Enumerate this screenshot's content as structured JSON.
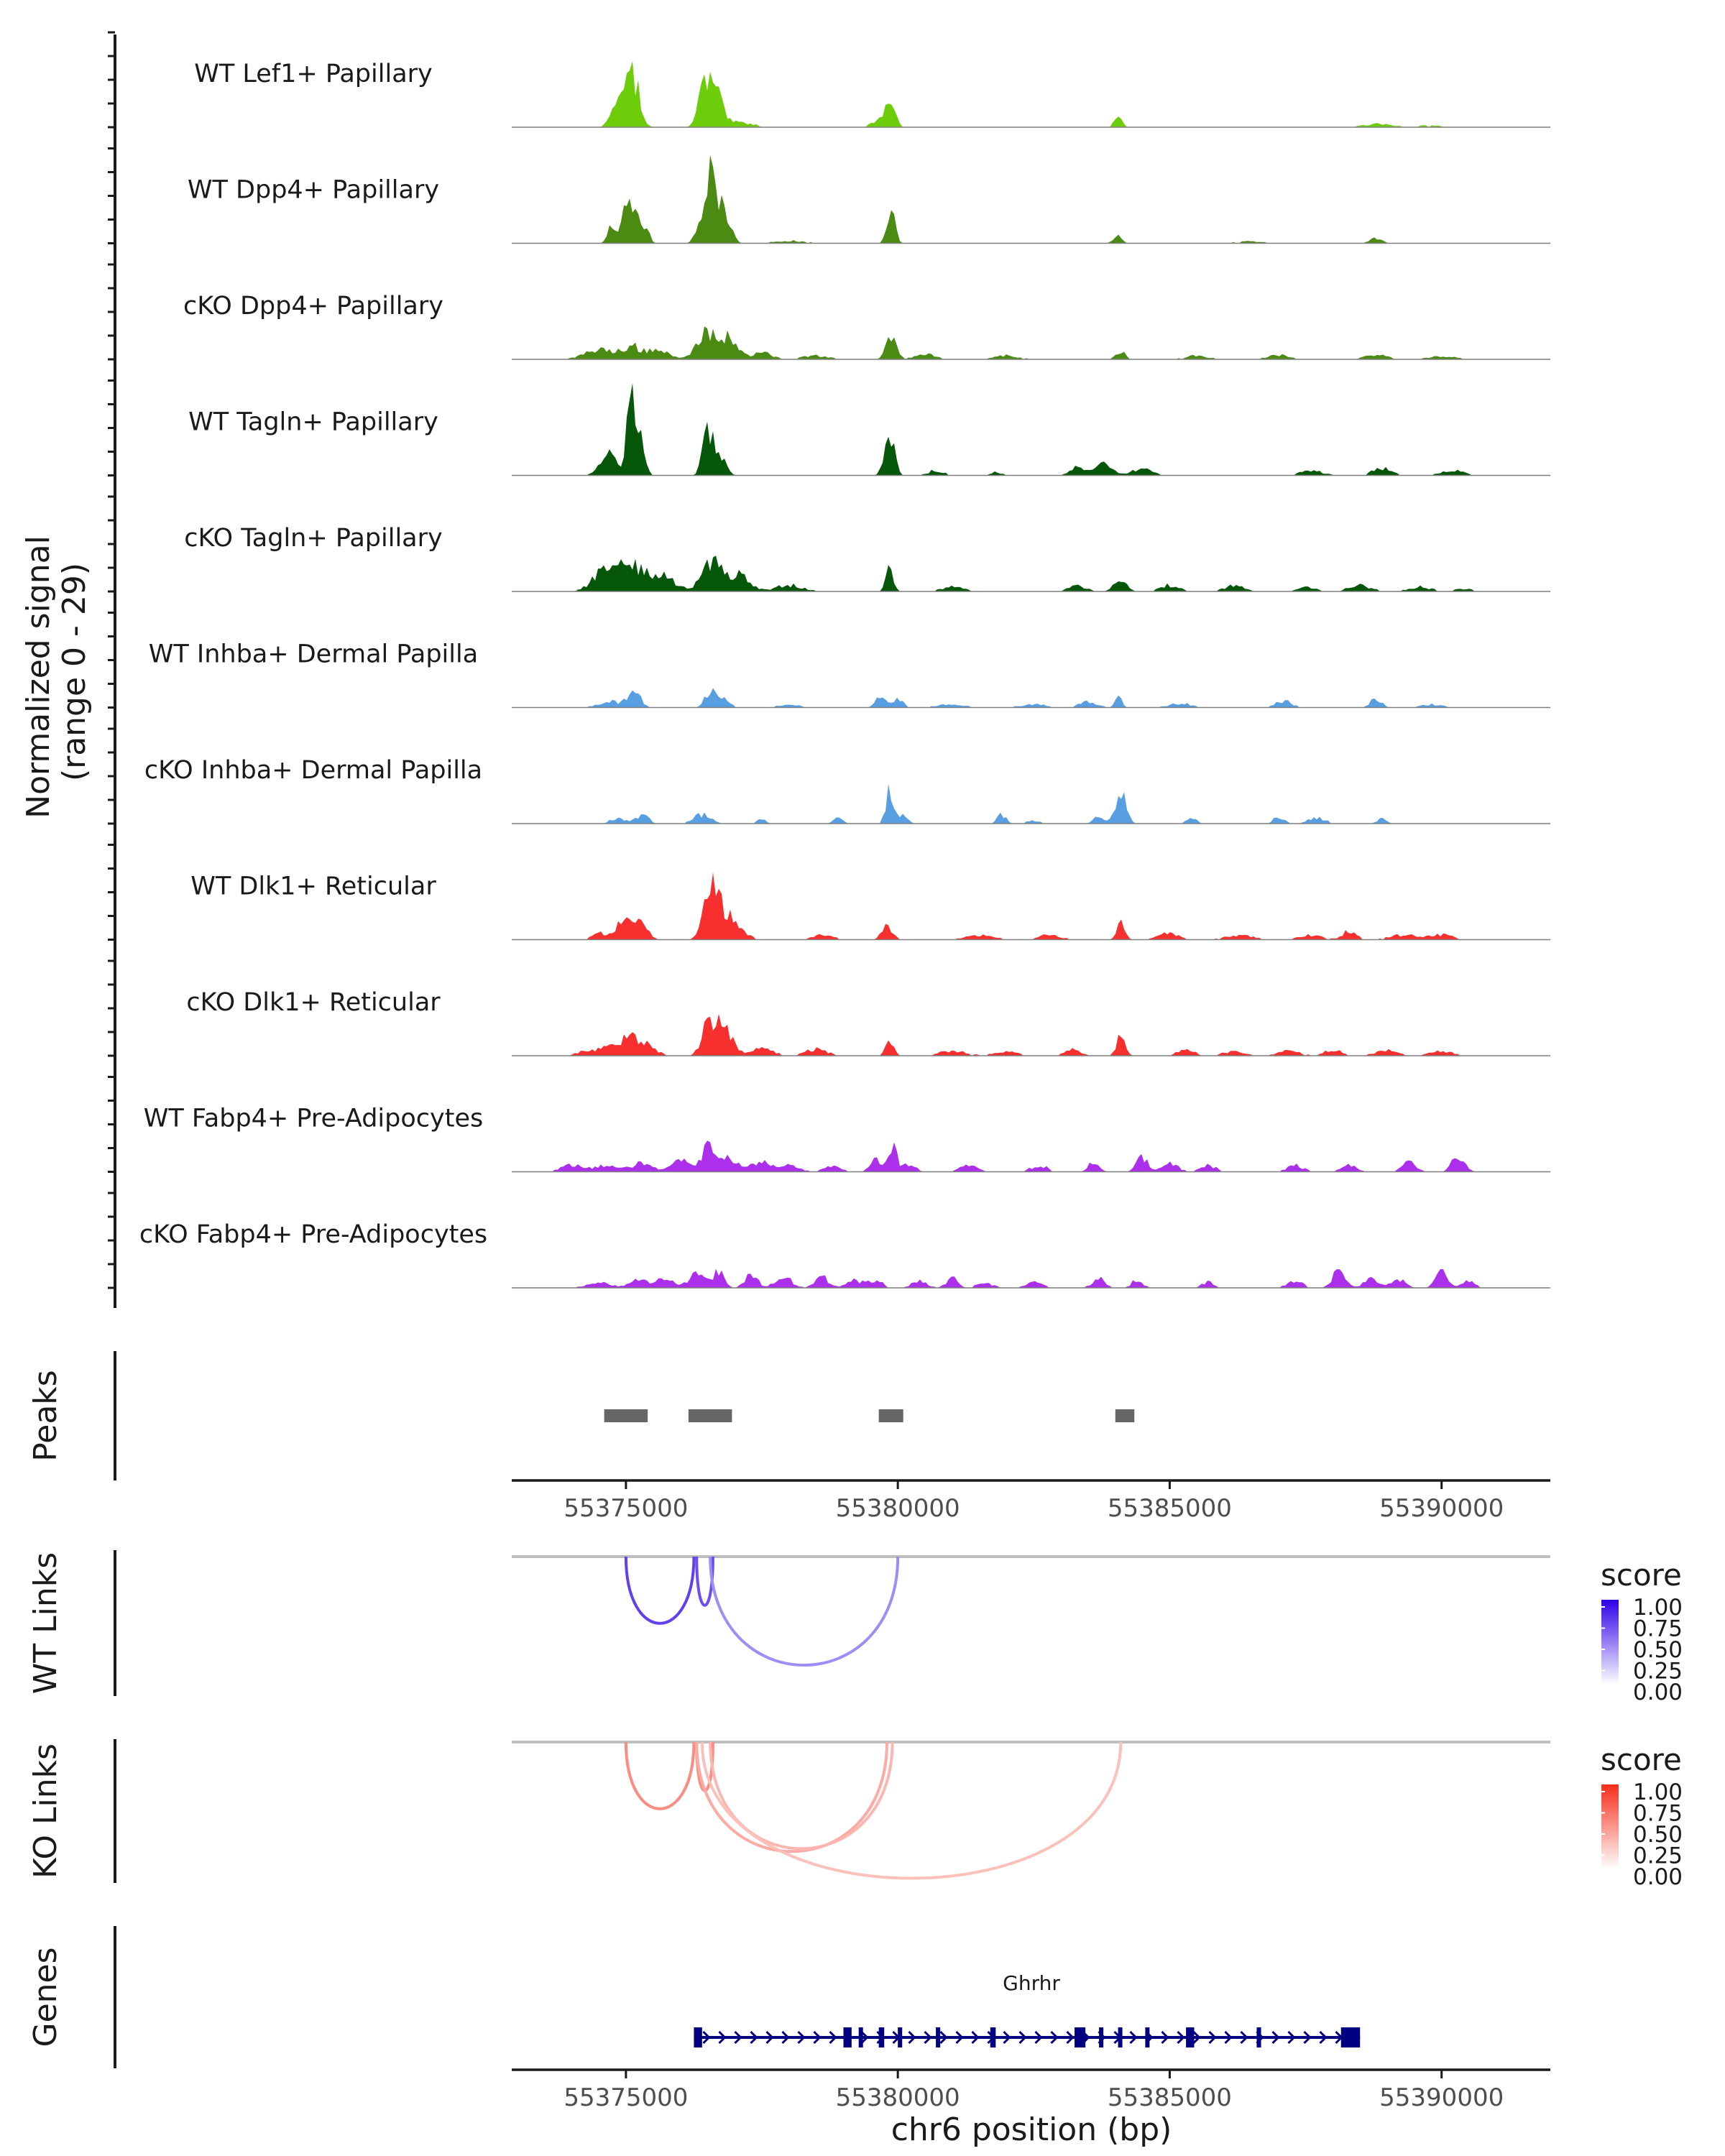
{
  "figure": {
    "y_axis_title_line1": "Normalized signal",
    "y_axis_title_line2": "(range 0 - 29)",
    "x_axis_title": "chr6 position (bp)"
  },
  "chart_data": {
    "type": "genome-browser-coverage",
    "chromosome": "chr6",
    "xlim": [
      55372900,
      55392000
    ],
    "x_ticks": [
      55375000,
      55380000,
      55385000,
      55390000
    ],
    "x_tick_labels": [
      "55375000",
      "55380000",
      "55385000",
      "55390000"
    ],
    "signal_range": [
      0,
      29
    ],
    "tracks": [
      {
        "name": "WT Lef1+ Papillary",
        "color": "#6dcd0b",
        "peaks": [
          [
            55374710,
            3,
            55
          ],
          [
            55375000,
            11,
            160
          ],
          [
            55375160,
            9,
            110
          ],
          [
            55376480,
            9,
            140
          ],
          [
            55376650,
            8,
            130
          ],
          [
            55376400,
            4,
            60
          ],
          [
            55377100,
            1.5,
            250
          ],
          [
            55379850,
            8,
            90
          ],
          [
            55379700,
            2.5,
            150
          ],
          [
            55384050,
            3,
            70
          ],
          [
            55388800,
            1,
            250
          ],
          [
            55389700,
            0.5,
            300
          ]
        ]
      },
      {
        "name": "WT Dpp4+ Papillary",
        "color": "#4b8a13",
        "peaks": [
          [
            55374700,
            4,
            60
          ],
          [
            55375050,
            13,
            130
          ],
          [
            55375300,
            6,
            100
          ],
          [
            55376570,
            20,
            90
          ],
          [
            55376780,
            12,
            120
          ],
          [
            55376350,
            6,
            80
          ],
          [
            55379870,
            13,
            70
          ],
          [
            55384050,
            2.2,
            80
          ],
          [
            55388800,
            1.5,
            120
          ],
          [
            55378000,
            0.8,
            300
          ],
          [
            55386500,
            0.6,
            300
          ]
        ]
      },
      {
        "name": "cKO Dpp4+ Papillary",
        "color": "#4b8a13",
        "peaks": [
          [
            55374500,
            3,
            250
          ],
          [
            55375100,
            4,
            200
          ],
          [
            55375600,
            3,
            180
          ],
          [
            55376500,
            9,
            180
          ],
          [
            55376900,
            6,
            160
          ],
          [
            55377500,
            2,
            200
          ],
          [
            55378500,
            1.2,
            250
          ],
          [
            55379880,
            7,
            90
          ],
          [
            55380500,
            1.5,
            200
          ],
          [
            55382000,
            1.2,
            220
          ],
          [
            55384100,
            3,
            80
          ],
          [
            55385500,
            1.2,
            200
          ],
          [
            55387000,
            1.5,
            200
          ],
          [
            55388800,
            1.5,
            200
          ],
          [
            55390000,
            1,
            250
          ]
        ]
      },
      {
        "name": "WT Tagln+ Papillary",
        "color": "#065709",
        "peaks": [
          [
            55374700,
            8,
            150
          ],
          [
            55375080,
            22,
            70
          ],
          [
            55375250,
            11,
            90
          ],
          [
            55376500,
            13,
            90
          ],
          [
            55376700,
            8,
            110
          ],
          [
            55379850,
            12,
            90
          ],
          [
            55380700,
            1.5,
            150
          ],
          [
            55383300,
            3,
            130
          ],
          [
            55383800,
            4,
            150
          ],
          [
            55384500,
            2.5,
            160
          ],
          [
            55387600,
            1.5,
            200
          ],
          [
            55388900,
            2.5,
            160
          ],
          [
            55390200,
            1.5,
            200
          ],
          [
            55381800,
            1,
            120
          ]
        ]
      },
      {
        "name": "cKO Tagln+ Papillary",
        "color": "#065709",
        "peaks": [
          [
            55374600,
            6,
            220
          ],
          [
            55375100,
            8,
            250
          ],
          [
            55375700,
            5,
            200
          ],
          [
            55376600,
            9,
            200
          ],
          [
            55377100,
            5,
            180
          ],
          [
            55378000,
            2,
            250
          ],
          [
            55379850,
            10,
            60
          ],
          [
            55381000,
            1.5,
            200
          ],
          [
            55383300,
            2,
            150
          ],
          [
            55384100,
            4,
            120
          ],
          [
            55385000,
            2,
            160
          ],
          [
            55386200,
            2,
            180
          ],
          [
            55387500,
            1.5,
            160
          ],
          [
            55388500,
            2,
            200
          ],
          [
            55389600,
            1.5,
            200
          ],
          [
            55390400,
            1,
            150
          ]
        ]
      },
      {
        "name": "WT Inhba+ Dermal Papilla",
        "color": "#579ee2",
        "peaks": [
          [
            55374700,
            2,
            200
          ],
          [
            55375150,
            5,
            120
          ],
          [
            55376550,
            5,
            100
          ],
          [
            55376800,
            2.5,
            120
          ],
          [
            55378000,
            1,
            200
          ],
          [
            55379700,
            3.5,
            100
          ],
          [
            55380000,
            2.5,
            100
          ],
          [
            55381000,
            1,
            250
          ],
          [
            55382500,
            1,
            250
          ],
          [
            55383500,
            1.8,
            160
          ],
          [
            55384050,
            4,
            60
          ],
          [
            55385200,
            1.3,
            200
          ],
          [
            55387100,
            2,
            150
          ],
          [
            55388800,
            3,
            100
          ],
          [
            55389800,
            1,
            200
          ]
        ]
      },
      {
        "name": "cKO Inhba+ Dermal Papilla",
        "color": "#579ee2",
        "peaks": [
          [
            55374850,
            2,
            120
          ],
          [
            55375300,
            2.5,
            120
          ],
          [
            55376400,
            3,
            150
          ],
          [
            55377500,
            1.5,
            80
          ],
          [
            55378900,
            2,
            80
          ],
          [
            55379850,
            10,
            70
          ],
          [
            55380100,
            3,
            80
          ],
          [
            55381900,
            3,
            80
          ],
          [
            55382500,
            1,
            120
          ],
          [
            55383700,
            3,
            90
          ],
          [
            55384100,
            9,
            100
          ],
          [
            55385400,
            1.5,
            100
          ],
          [
            55387000,
            2,
            100
          ],
          [
            55387700,
            2,
            150
          ],
          [
            55388900,
            1.5,
            80
          ]
        ]
      },
      {
        "name": "WT Dlk1+ Reticular",
        "color": "#f82f2f",
        "peaks": [
          [
            55374500,
            2,
            120
          ],
          [
            55375000,
            7,
            160
          ],
          [
            55375300,
            4,
            120
          ],
          [
            55376550,
            14,
            130
          ],
          [
            55376800,
            8,
            150
          ],
          [
            55377100,
            3,
            150
          ],
          [
            55378600,
            1.5,
            200
          ],
          [
            55379800,
            4,
            100
          ],
          [
            55381500,
            1.5,
            250
          ],
          [
            55382800,
            1.5,
            200
          ],
          [
            55384100,
            5,
            80
          ],
          [
            55385000,
            2,
            200
          ],
          [
            55386300,
            1.5,
            250
          ],
          [
            55387600,
            1.5,
            200
          ],
          [
            55388300,
            3,
            120
          ],
          [
            55389300,
            1.5,
            250
          ],
          [
            55390000,
            1.5,
            200
          ]
        ]
      },
      {
        "name": "cKO Dlk1+ Reticular",
        "color": "#f82f2f",
        "peaks": [
          [
            55374300,
            1.5,
            200
          ],
          [
            55374700,
            3,
            150
          ],
          [
            55375050,
            7,
            130
          ],
          [
            55375400,
            3.5,
            150
          ],
          [
            55376550,
            12,
            130
          ],
          [
            55376850,
            7,
            150
          ],
          [
            55377500,
            2.5,
            200
          ],
          [
            55378500,
            2,
            200
          ],
          [
            55379850,
            5,
            70
          ],
          [
            55381000,
            1.5,
            250
          ],
          [
            55382000,
            1.5,
            200
          ],
          [
            55383200,
            2,
            150
          ],
          [
            55384100,
            6,
            80
          ],
          [
            55385300,
            2,
            150
          ],
          [
            55386200,
            1.5,
            200
          ],
          [
            55387200,
            1.5,
            200
          ],
          [
            55388000,
            2,
            150
          ],
          [
            55389000,
            1.8,
            200
          ],
          [
            55390000,
            1.5,
            200
          ]
        ]
      },
      {
        "name": "WT Fabp4+ Pre-Adipocytes",
        "color": "#ac30eb",
        "peaks": [
          [
            55374000,
            2,
            200
          ],
          [
            55374600,
            2,
            200
          ],
          [
            55375300,
            3,
            200
          ],
          [
            55376000,
            3.5,
            150
          ],
          [
            55376550,
            9,
            140
          ],
          [
            55376900,
            4,
            150
          ],
          [
            55377500,
            3,
            200
          ],
          [
            55378000,
            2,
            180
          ],
          [
            55378800,
            2,
            150
          ],
          [
            55379600,
            4,
            100
          ],
          [
            55379900,
            8,
            80
          ],
          [
            55380200,
            2.5,
            120
          ],
          [
            55381300,
            2,
            150
          ],
          [
            55382600,
            2,
            150
          ],
          [
            55383600,
            3,
            100
          ],
          [
            55384500,
            5,
            100
          ],
          [
            55385000,
            2.5,
            150
          ],
          [
            55385700,
            2,
            150
          ],
          [
            55387300,
            2,
            150
          ],
          [
            55388300,
            2,
            150
          ],
          [
            55389400,
            3,
            120
          ],
          [
            55390300,
            5,
            120
          ]
        ]
      },
      {
        "name": "cKO Fabp4+ Pre-Adipocytes",
        "color": "#ac30eb",
        "peaks": [
          [
            55374500,
            2,
            200
          ],
          [
            55375200,
            2.5,
            150
          ],
          [
            55375700,
            2.5,
            200
          ],
          [
            55376300,
            4,
            150
          ],
          [
            55376700,
            5,
            100
          ],
          [
            55377300,
            4,
            120
          ],
          [
            55377900,
            3.5,
            150
          ],
          [
            55378600,
            3.5,
            120
          ],
          [
            55379200,
            2.5,
            150
          ],
          [
            55379600,
            2.5,
            120
          ],
          [
            55380400,
            2,
            150
          ],
          [
            55381000,
            3.5,
            100
          ],
          [
            55381600,
            1.5,
            150
          ],
          [
            55382500,
            2,
            150
          ],
          [
            55383700,
            3,
            120
          ],
          [
            55384400,
            2.5,
            100
          ],
          [
            55385700,
            2,
            100
          ],
          [
            55387300,
            2,
            150
          ],
          [
            55388100,
            5,
            120
          ],
          [
            55388700,
            3.5,
            120
          ],
          [
            55389200,
            3,
            120
          ],
          [
            55390000,
            6,
            100
          ],
          [
            55390500,
            2,
            120
          ]
        ]
      }
    ],
    "peaks_track": {
      "label": "Peaks",
      "regions": [
        [
          55374600,
          55375400
        ],
        [
          55376150,
          55376950
        ],
        [
          55379650,
          55380100
        ],
        [
          55384000,
          55384350
        ]
      ]
    },
    "wt_links": {
      "label": "WT Links",
      "legend_title": "score",
      "legend_ticks": [
        "1.00",
        "0.75",
        "0.50",
        "0.25",
        "0.00"
      ],
      "color_high": "#2e00e8",
      "links": [
        {
          "start": 55375000,
          "end": 55376250,
          "score": 0.75
        },
        {
          "start": 55376300,
          "end": 55376600,
          "score": 0.7
        },
        {
          "start": 55376550,
          "end": 55380000,
          "score": 0.45
        }
      ]
    },
    "ko_links": {
      "label": "KO Links",
      "legend_title": "score",
      "legend_ticks": [
        "1.00",
        "0.75",
        "0.50",
        "0.25",
        "0.00"
      ],
      "color_high": "#f52d1b",
      "links": [
        {
          "start": 55375000,
          "end": 55376250,
          "score": 0.55
        },
        {
          "start": 55376300,
          "end": 55376600,
          "score": 0.55
        },
        {
          "start": 55376300,
          "end": 55379800,
          "score": 0.4
        },
        {
          "start": 55376550,
          "end": 55379900,
          "score": 0.35
        },
        {
          "start": 55376400,
          "end": 55384100,
          "score": 0.3
        }
      ]
    },
    "genes_track": {
      "label": "Genes",
      "gene_name": "Ghrhr",
      "color": "#000080",
      "start": 55376250,
      "end": 55388500,
      "exons": [
        [
          55376250,
          55376400
        ],
        [
          55379000,
          55379150
        ],
        [
          55379280,
          55379340
        ],
        [
          55379650,
          55379750
        ],
        [
          55380000,
          55380080
        ],
        [
          55380700,
          55380780
        ],
        [
          55381700,
          55381800
        ],
        [
          55383250,
          55383450
        ],
        [
          55383700,
          55383780
        ],
        [
          55384050,
          55384120
        ],
        [
          55384550,
          55384620
        ],
        [
          55385300,
          55385450
        ],
        [
          55386600,
          55386680
        ],
        [
          55388150,
          55388500
        ]
      ]
    }
  }
}
